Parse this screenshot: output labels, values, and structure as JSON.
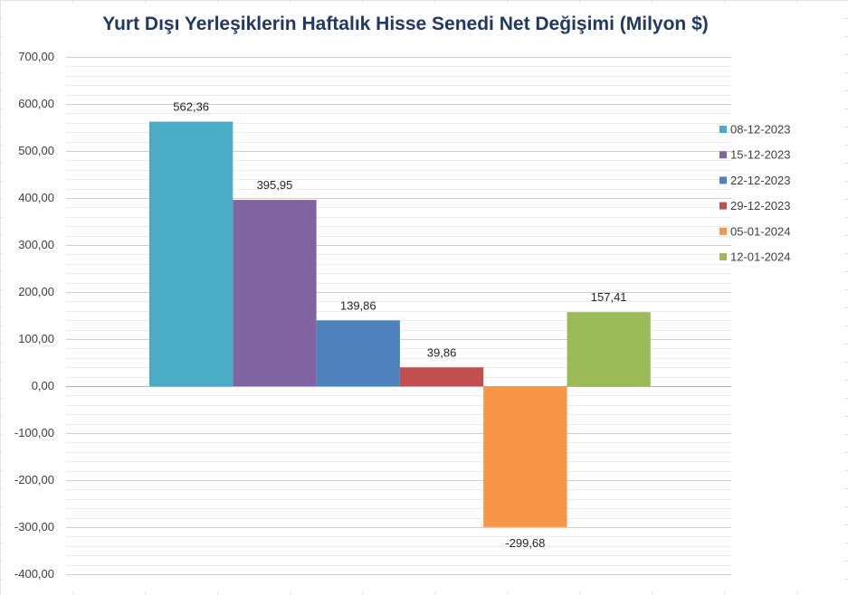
{
  "chart_data": {
    "type": "bar",
    "title": "Yurt Dışı Yerleşiklerin Haftalık Hisse Senedi Net Değişimi (Milyon $)",
    "xlabel": "",
    "ylabel": "",
    "ylim": [
      -400,
      700
    ],
    "y_ticks": [
      "700,00",
      "600,00",
      "500,00",
      "400,00",
      "300,00",
      "200,00",
      "100,00",
      "0,00",
      "-100,00",
      "-200,00",
      "-300,00",
      "-400,00"
    ],
    "grid": true,
    "legend_position": "right",
    "series": [
      {
        "name": "08-12-2023",
        "value": 562.36,
        "label": "562,36",
        "color": "#4bacc6"
      },
      {
        "name": "15-12-2023",
        "value": 395.95,
        "label": "395,95",
        "color": "#8064a2"
      },
      {
        "name": "22-12-2023",
        "value": 139.86,
        "label": "139,86",
        "color": "#4f81bd"
      },
      {
        "name": "29-12-2023",
        "value": 39.86,
        "label": "39,86",
        "color": "#c0504d"
      },
      {
        "name": "05-01-2024",
        "value": -299.68,
        "label": "-299,68",
        "color": "#f79646"
      },
      {
        "name": "12-01-2024",
        "value": 157.41,
        "label": "157,41",
        "color": "#9bbb59"
      }
    ]
  }
}
